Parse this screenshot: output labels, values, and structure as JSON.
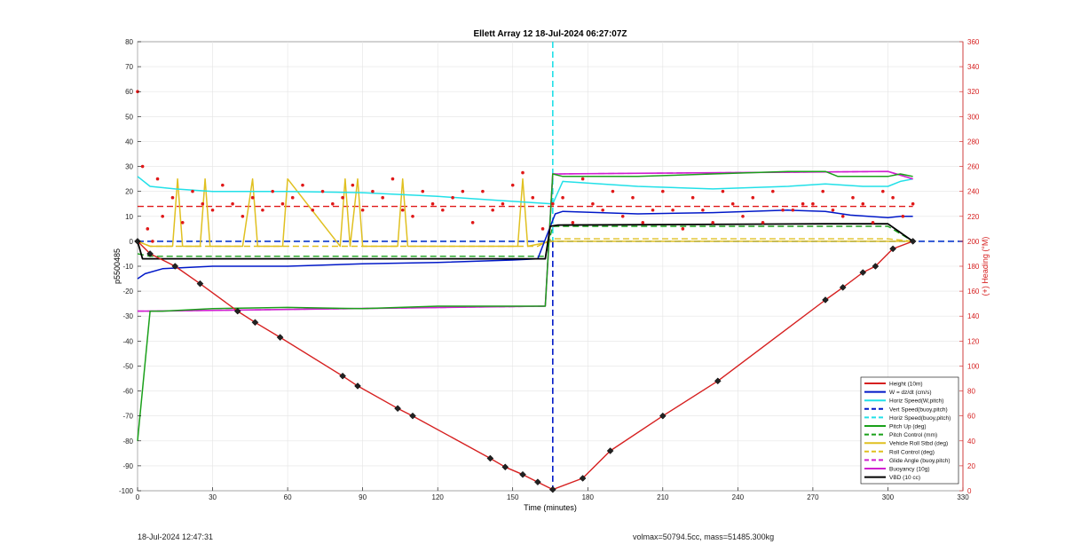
{
  "chart_data": {
    "type": "line",
    "title": "Ellett Array 12 18-Jul-2024 06:27:07Z",
    "xlabel": "Time (minutes)",
    "ylabel_left": "p5500485",
    "ylabel_right": "(+) Heading (°M)",
    "xlim": [
      0,
      330
    ],
    "ylim_left": [
      -100,
      80
    ],
    "ylim_right": [
      0,
      360
    ],
    "x_ticks": [
      0,
      30,
      60,
      90,
      120,
      150,
      180,
      210,
      240,
      270,
      300,
      330
    ],
    "y_ticks_left": [
      80,
      70,
      60,
      50,
      40,
      30,
      20,
      10,
      0,
      -10,
      -20,
      -30,
      -40,
      -50,
      -60,
      -70,
      -80,
      -90,
      -100
    ],
    "y_ticks_right": [
      360,
      340,
      320,
      300,
      280,
      260,
      240,
      220,
      200,
      180,
      160,
      140,
      120,
      100,
      80,
      60,
      40,
      20,
      0
    ],
    "grid": true,
    "legend_position": "bottom-right",
    "colors": {
      "height": "#d62020",
      "w": "#0018c8",
      "horiz": "#22e0e8",
      "pitch": "#1aa01a",
      "roll": "#e0c020",
      "glide": "#d020d0",
      "vbd": "#000000",
      "heading": "#e01818",
      "right_axis": "#d62020"
    },
    "legend": [
      {
        "label": "Height (10m)",
        "style": "solid",
        "color": "#d62020"
      },
      {
        "label": "W = dz/dt (cm/s)",
        "style": "solid",
        "color": "#0018c8"
      },
      {
        "label": "Horiz Speed(W,pitch)",
        "style": "solid",
        "color": "#22e0e8"
      },
      {
        "label": "Vert Speed(buoy,pitch)",
        "style": "dashed",
        "color": "#0018c8"
      },
      {
        "label": "Horiz Speed(buoy,pitch)",
        "style": "dashed",
        "color": "#22e0e8"
      },
      {
        "label": "Pitch Up (deg)",
        "style": "solid",
        "color": "#1aa01a"
      },
      {
        "label": "Pitch Control (mm)",
        "style": "dashed",
        "color": "#1aa01a"
      },
      {
        "label": "Vehicle Roll Stbd (deg)",
        "style": "solid",
        "color": "#e0c020"
      },
      {
        "label": "Roll Control (deg)",
        "style": "dashed",
        "color": "#e0c020"
      },
      {
        "label": "Glide Angle (buoy,pitch)",
        "style": "dashed",
        "color": "#d020d0"
      },
      {
        "label": "Buoyancy (10g)",
        "style": "solid",
        "color": "#d020d0"
      },
      {
        "label": "VBD (10 cc)",
        "style": "solid",
        "color": "#000000"
      }
    ],
    "series": [
      {
        "name": "Height (10m)",
        "x": [
          0,
          5,
          15,
          25,
          40,
          47,
          57,
          82,
          88,
          104,
          110,
          141,
          147,
          154,
          160,
          166,
          178,
          189,
          210,
          232,
          275,
          282,
          290,
          295,
          302,
          310
        ],
        "y": [
          0,
          -5,
          -10,
          -17,
          -28,
          -32.5,
          -38.5,
          -54,
          -58,
          -67,
          -70,
          -87,
          -90.5,
          -93.5,
          -96.5,
          -99.5,
          -95,
          -84,
          -70,
          -56,
          -23.5,
          -18.5,
          -12.5,
          -10,
          -3,
          0
        ]
      },
      {
        "name": "W = dz/dt (cm/s)",
        "x": [
          0,
          3,
          10,
          30,
          60,
          90,
          120,
          150,
          160,
          167,
          170,
          200,
          230,
          260,
          275,
          285,
          300,
          305,
          310
        ],
        "y": [
          -15,
          -13,
          -11,
          -10,
          -10,
          -9,
          -8.5,
          -7.5,
          -7,
          11,
          12,
          11,
          11.5,
          12.5,
          12,
          10.5,
          9.5,
          10,
          10
        ]
      },
      {
        "name": "Horiz Speed(W,pitch)",
        "x": [
          0,
          5,
          15,
          30,
          60,
          90,
          120,
          150,
          166,
          170,
          200,
          230,
          260,
          275,
          290,
          300,
          305,
          310
        ],
        "y": [
          26,
          22,
          21,
          20,
          20,
          19.5,
          18,
          16,
          15,
          24,
          22,
          21,
          22,
          23,
          22,
          22,
          24,
          25
        ]
      },
      {
        "name": "Vert Speed(buoy,pitch)",
        "x": [
          0,
          330
        ],
        "y": [
          0,
          0
        ]
      },
      {
        "name": "Horiz Speed(buoy,pitch)",
        "x": [
          0,
          330
        ],
        "y": [
          0,
          0
        ]
      },
      {
        "name": "Pitch Up (deg)",
        "x": [
          0,
          5,
          10,
          30,
          60,
          90,
          120,
          150,
          163,
          166,
          170,
          200,
          230,
          260,
          275,
          280,
          300,
          305,
          310
        ],
        "y": [
          -80,
          -28,
          -28,
          -27,
          -26.5,
          -27,
          -26,
          -26,
          -26,
          27,
          26,
          26,
          27,
          28,
          28,
          26,
          26,
          27,
          26
        ]
      },
      {
        "name": "Pitch Control (mm)",
        "x": [
          0,
          5,
          163,
          166,
          300,
          310
        ],
        "y": [
          -5,
          -6,
          -6,
          6,
          6,
          0
        ]
      },
      {
        "name": "Vehicle Roll Stbd (deg)",
        "x": [
          0,
          5,
          14,
          16,
          18,
          25,
          27,
          29,
          42,
          46,
          48,
          58,
          60,
          81,
          83,
          85,
          88,
          90,
          104,
          106,
          108,
          152,
          154,
          156,
          166,
          170,
          180,
          200,
          220,
          240,
          260,
          280,
          300,
          310
        ],
        "y": [
          0,
          -2,
          -2,
          25,
          -2,
          -2,
          25,
          -2,
          -2,
          25,
          -2,
          -2,
          25,
          -2,
          25,
          -2,
          25,
          -2,
          -2,
          25,
          -2,
          -2,
          25,
          -2,
          0,
          0,
          0,
          0,
          0,
          0,
          0,
          0,
          0,
          0
        ]
      },
      {
        "name": "Roll Control (deg)",
        "x": [
          0,
          5,
          160,
          166,
          300,
          310
        ],
        "y": [
          0,
          -2,
          -2,
          1,
          1,
          0
        ]
      },
      {
        "name": "Glide Angle (buoy,pitch)",
        "x": [
          0,
          5,
          163,
          166,
          300,
          310
        ],
        "y": [
          -28,
          -28,
          -26,
          27,
          28,
          25
        ]
      },
      {
        "name": "Buoyancy (10g)",
        "x": [
          0,
          5,
          163,
          166,
          300,
          310
        ],
        "y": [
          -28,
          -28,
          -26,
          27,
          28,
          25
        ]
      },
      {
        "name": "VBD (10 cc)",
        "x": [
          0,
          2,
          163,
          165,
          168,
          275,
          278,
          300,
          310
        ],
        "y": [
          0,
          -7,
          -7,
          6,
          6.5,
          7,
          7,
          7,
          0
        ]
      }
    ],
    "heading_series": {
      "name": "Heading",
      "axis": "right",
      "x": [
        0,
        2,
        4,
        6,
        8,
        10,
        14,
        18,
        22,
        26,
        30,
        34,
        38,
        42,
        46,
        50,
        54,
        58,
        62,
        66,
        70,
        74,
        78,
        82,
        86,
        90,
        94,
        98,
        102,
        106,
        110,
        114,
        118,
        122,
        126,
        130,
        134,
        138,
        142,
        146,
        150,
        154,
        158,
        162,
        166,
        170,
        174,
        178,
        182,
        186,
        190,
        194,
        198,
        202,
        206,
        210,
        214,
        218,
        222,
        226,
        230,
        234,
        238,
        242,
        246,
        250,
        254,
        258,
        262,
        266,
        270,
        274,
        278,
        282,
        286,
        290,
        294,
        298,
        302,
        306,
        310
      ],
      "y": [
        320,
        260,
        210,
        200,
        250,
        220,
        235,
        215,
        240,
        230,
        225,
        245,
        230,
        220,
        235,
        225,
        240,
        230,
        235,
        245,
        225,
        240,
        230,
        235,
        245,
        225,
        240,
        235,
        250,
        225,
        220,
        240,
        230,
        225,
        235,
        240,
        215,
        240,
        225,
        230,
        245,
        255,
        235,
        210,
        230,
        235,
        215,
        250,
        230,
        225,
        240,
        220,
        235,
        215,
        225,
        240,
        225,
        210,
        235,
        225,
        215,
        240,
        230,
        220,
        235,
        215,
        240,
        225,
        225,
        230,
        230,
        240,
        225,
        220,
        235,
        230,
        215,
        240,
        235,
        220,
        230
      ]
    },
    "heading_mean": {
      "axis": "right",
      "y": 228
    },
    "apogee_line": {
      "x": 166,
      "style": "dashed",
      "color_lower": "#0018c8",
      "color_upper": "#22e0e8"
    }
  },
  "footer": {
    "timestamp": "18-Jul-2024 12:47:31",
    "info": "volmax=50794.5cc, mass=51485.300kg"
  }
}
